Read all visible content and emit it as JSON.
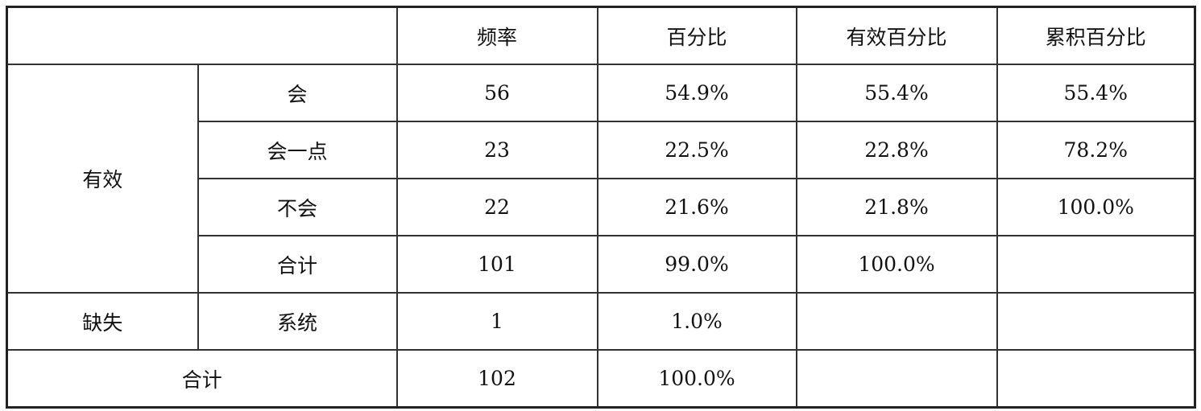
{
  "headers": [
    "频率",
    "百分比",
    "有效百分比",
    "累积百分比"
  ],
  "groups": {
    "valid": "有效",
    "missing": "缺失",
    "total": "合计"
  },
  "rows": [
    {
      "label": "会",
      "cells": [
        "56",
        "54.9%",
        "55.4%",
        "55.4%"
      ]
    },
    {
      "label": "会一点",
      "cells": [
        "23",
        "22.5%",
        "22.8%",
        "78.2%"
      ]
    },
    {
      "label": "不会",
      "cells": [
        "22",
        "21.6%",
        "21.8%",
        "100.0%"
      ]
    },
    {
      "label": "合计",
      "cells": [
        "101",
        "99.0%",
        "100.0%",
        ""
      ]
    },
    {
      "label": "系统",
      "cells": [
        "1",
        "1.0%",
        "",
        ""
      ]
    },
    {
      "label": "",
      "cells": [
        "102",
        "100.0%",
        "",
        ""
      ]
    }
  ]
}
